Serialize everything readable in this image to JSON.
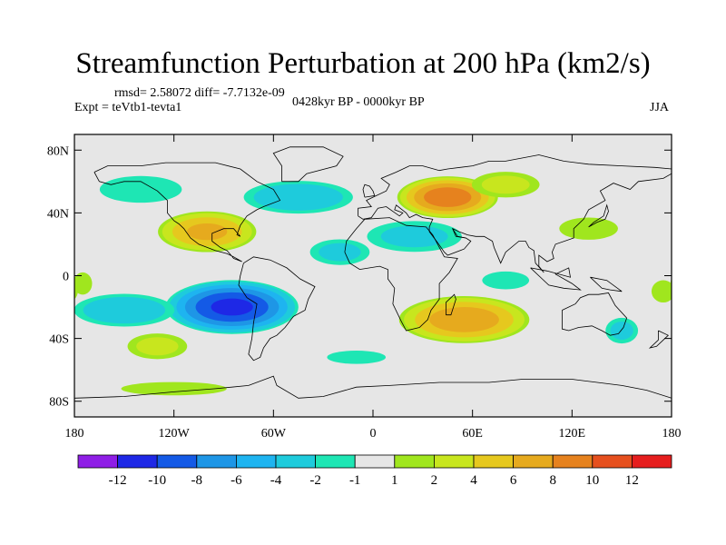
{
  "title": "Streamfunction Perturbation at 200 hPa (km2/s)",
  "stats_line": "rmsd= 2.58072 diff= -7.7132e-09",
  "expt_line": "Expt = teVtb1-tevta1",
  "period_line": "0428kyr BP - 0000kyr BP",
  "season": "JJA",
  "axes": {
    "lat_ticks": [
      {
        "label": "80N",
        "lat": 80
      },
      {
        "label": "40N",
        "lat": 40
      },
      {
        "label": "0",
        "lat": 0
      },
      {
        "label": "40S",
        "lat": -40
      },
      {
        "label": "80S",
        "lat": -80
      }
    ],
    "lon_ticks": [
      {
        "label": "180",
        "lon": -180
      },
      {
        "label": "120W",
        "lon": -120
      },
      {
        "label": "60W",
        "lon": -60
      },
      {
        "label": "0",
        "lon": 0
      },
      {
        "label": "60E",
        "lon": 60
      },
      {
        "label": "120E",
        "lon": 120
      },
      {
        "label": "180",
        "lon": 180
      }
    ]
  },
  "colorbar": {
    "colors": [
      "#8f1ee6",
      "#1e28e6",
      "#145ae6",
      "#1e96e6",
      "#1eb4f0",
      "#1ecbdc",
      "#1ee6b4",
      "#e6e6e6",
      "#a0e61e",
      "#c8e61e",
      "#e6c81e",
      "#e6aa1e",
      "#e6821e",
      "#e6501e",
      "#e61e1e"
    ],
    "labels": [
      "-12",
      "-10",
      "-8",
      "-6",
      "-4",
      "-2",
      "-1",
      "1",
      "2",
      "4",
      "6",
      "8",
      "10",
      "12"
    ]
  },
  "chart_data": {
    "type": "heatmap",
    "title": "Streamfunction Perturbation at 200 hPa (km2/s)",
    "units": "km2/s",
    "lon_range": [
      -180,
      180
    ],
    "lat_range": [
      -90,
      90
    ],
    "background_value": 0,
    "anomalies": [
      {
        "name": "south-america-low",
        "lon": -85,
        "lat": -20,
        "peak": -11,
        "rx": 42,
        "ry": 18
      },
      {
        "name": "south-pacific-low",
        "lon": -150,
        "lat": -22,
        "peak": -4,
        "rx": 35,
        "ry": 12
      },
      {
        "name": "north-atlantic-low",
        "lon": -45,
        "lat": 50,
        "peak": -4,
        "rx": 38,
        "ry": 12
      },
      {
        "name": "north-pacific-low",
        "lon": -140,
        "lat": 55,
        "peak": -2,
        "rx": 35,
        "ry": 12
      },
      {
        "name": "tropical-atlantic-low",
        "lon": -20,
        "lat": 15,
        "peak": -3,
        "rx": 22,
        "ry": 10
      },
      {
        "name": "north-africa-low",
        "lon": 25,
        "lat": 25,
        "peak": -3,
        "rx": 35,
        "ry": 12
      },
      {
        "name": "indian-ocean-low",
        "lon": 80,
        "lat": -3,
        "peak": -2,
        "rx": 20,
        "ry": 8
      },
      {
        "name": "australia-low",
        "lon": 150,
        "lat": -35,
        "peak": -3,
        "rx": 12,
        "ry": 10
      },
      {
        "name": "south-atlantic-low",
        "lon": -10,
        "lat": -52,
        "peak": -2,
        "rx": 25,
        "ry": 6
      },
      {
        "name": "gulf-of-mexico-high",
        "lon": -100,
        "lat": 28,
        "peak": 7,
        "rx": 32,
        "ry": 14
      },
      {
        "name": "western-eurasia-high",
        "lon": 45,
        "lat": 50,
        "peak": 10,
        "rx": 32,
        "ry": 14
      },
      {
        "name": "southern-africa-high",
        "lon": 55,
        "lat": -28,
        "peak": 8,
        "rx": 42,
        "ry": 16
      },
      {
        "name": "northern-asia-high",
        "lon": 80,
        "lat": 58,
        "peak": 3,
        "rx": 25,
        "ry": 10
      },
      {
        "name": "east-pacific-high",
        "lon": -130,
        "lat": -45,
        "peak": 3,
        "rx": 22,
        "ry": 10
      },
      {
        "name": "southern-ocean-high",
        "lon": -120,
        "lat": -72,
        "peak": 2,
        "rx": 45,
        "ry": 6
      },
      {
        "name": "east-asia-high",
        "lon": 130,
        "lat": 30,
        "peak": 2,
        "rx": 25,
        "ry": 10
      },
      {
        "name": "dateline-east-high",
        "lon": 175,
        "lat": -10,
        "peak": 2,
        "rx": 10,
        "ry": 10
      },
      {
        "name": "dateline-west-high",
        "lon": -175,
        "lat": -5,
        "peak": 2,
        "rx": 8,
        "ry": 10
      }
    ]
  }
}
